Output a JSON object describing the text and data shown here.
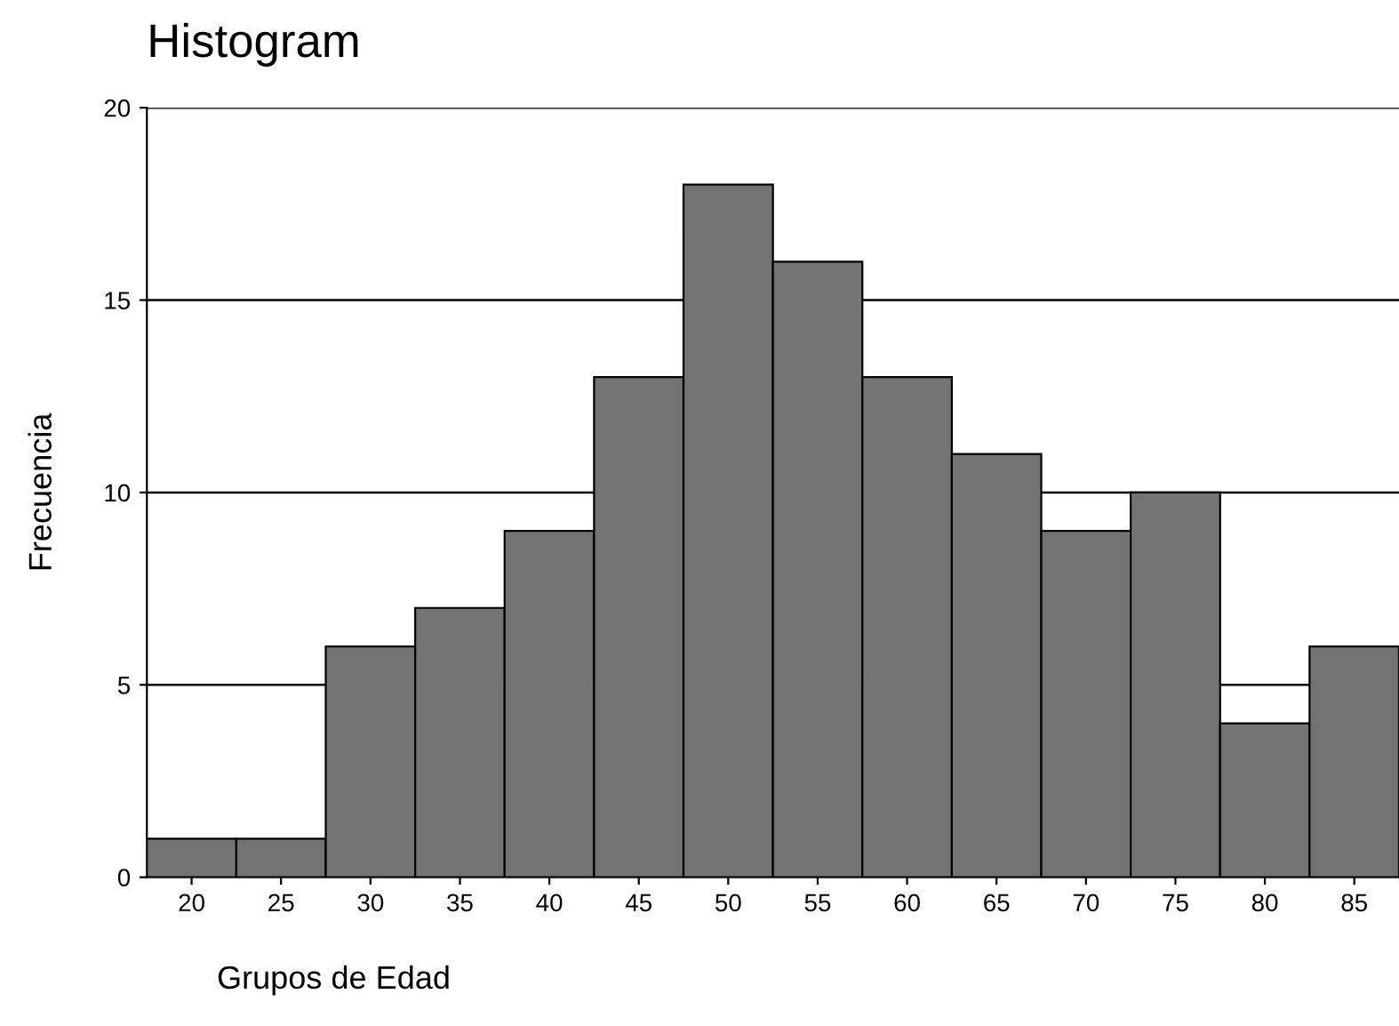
{
  "chart_data": {
    "type": "histogram",
    "title": "Histogram",
    "xlabel": "Grupos de Edad",
    "ylabel": "Frecuencia",
    "bins": [
      17.5,
      22.5,
      27.5,
      32.5,
      37.5,
      42.5,
      47.5,
      52.5,
      57.5,
      62.5,
      67.5,
      72.5,
      77.5,
      82.5,
      87.5
    ],
    "values": [
      1,
      1,
      6,
      7,
      9,
      13,
      18,
      16,
      13,
      11,
      9,
      10,
      4,
      6
    ],
    "color": "#737373",
    "xlim": [
      17.5,
      87.5
    ],
    "xticks": [
      20,
      25,
      30,
      35,
      40,
      45,
      50,
      55,
      60,
      65,
      70,
      75,
      80,
      85
    ],
    "ylim": [
      0,
      20
    ],
    "yticks": [
      0,
      5,
      10,
      15,
      20
    ],
    "grid": "y",
    "legend": false
  }
}
